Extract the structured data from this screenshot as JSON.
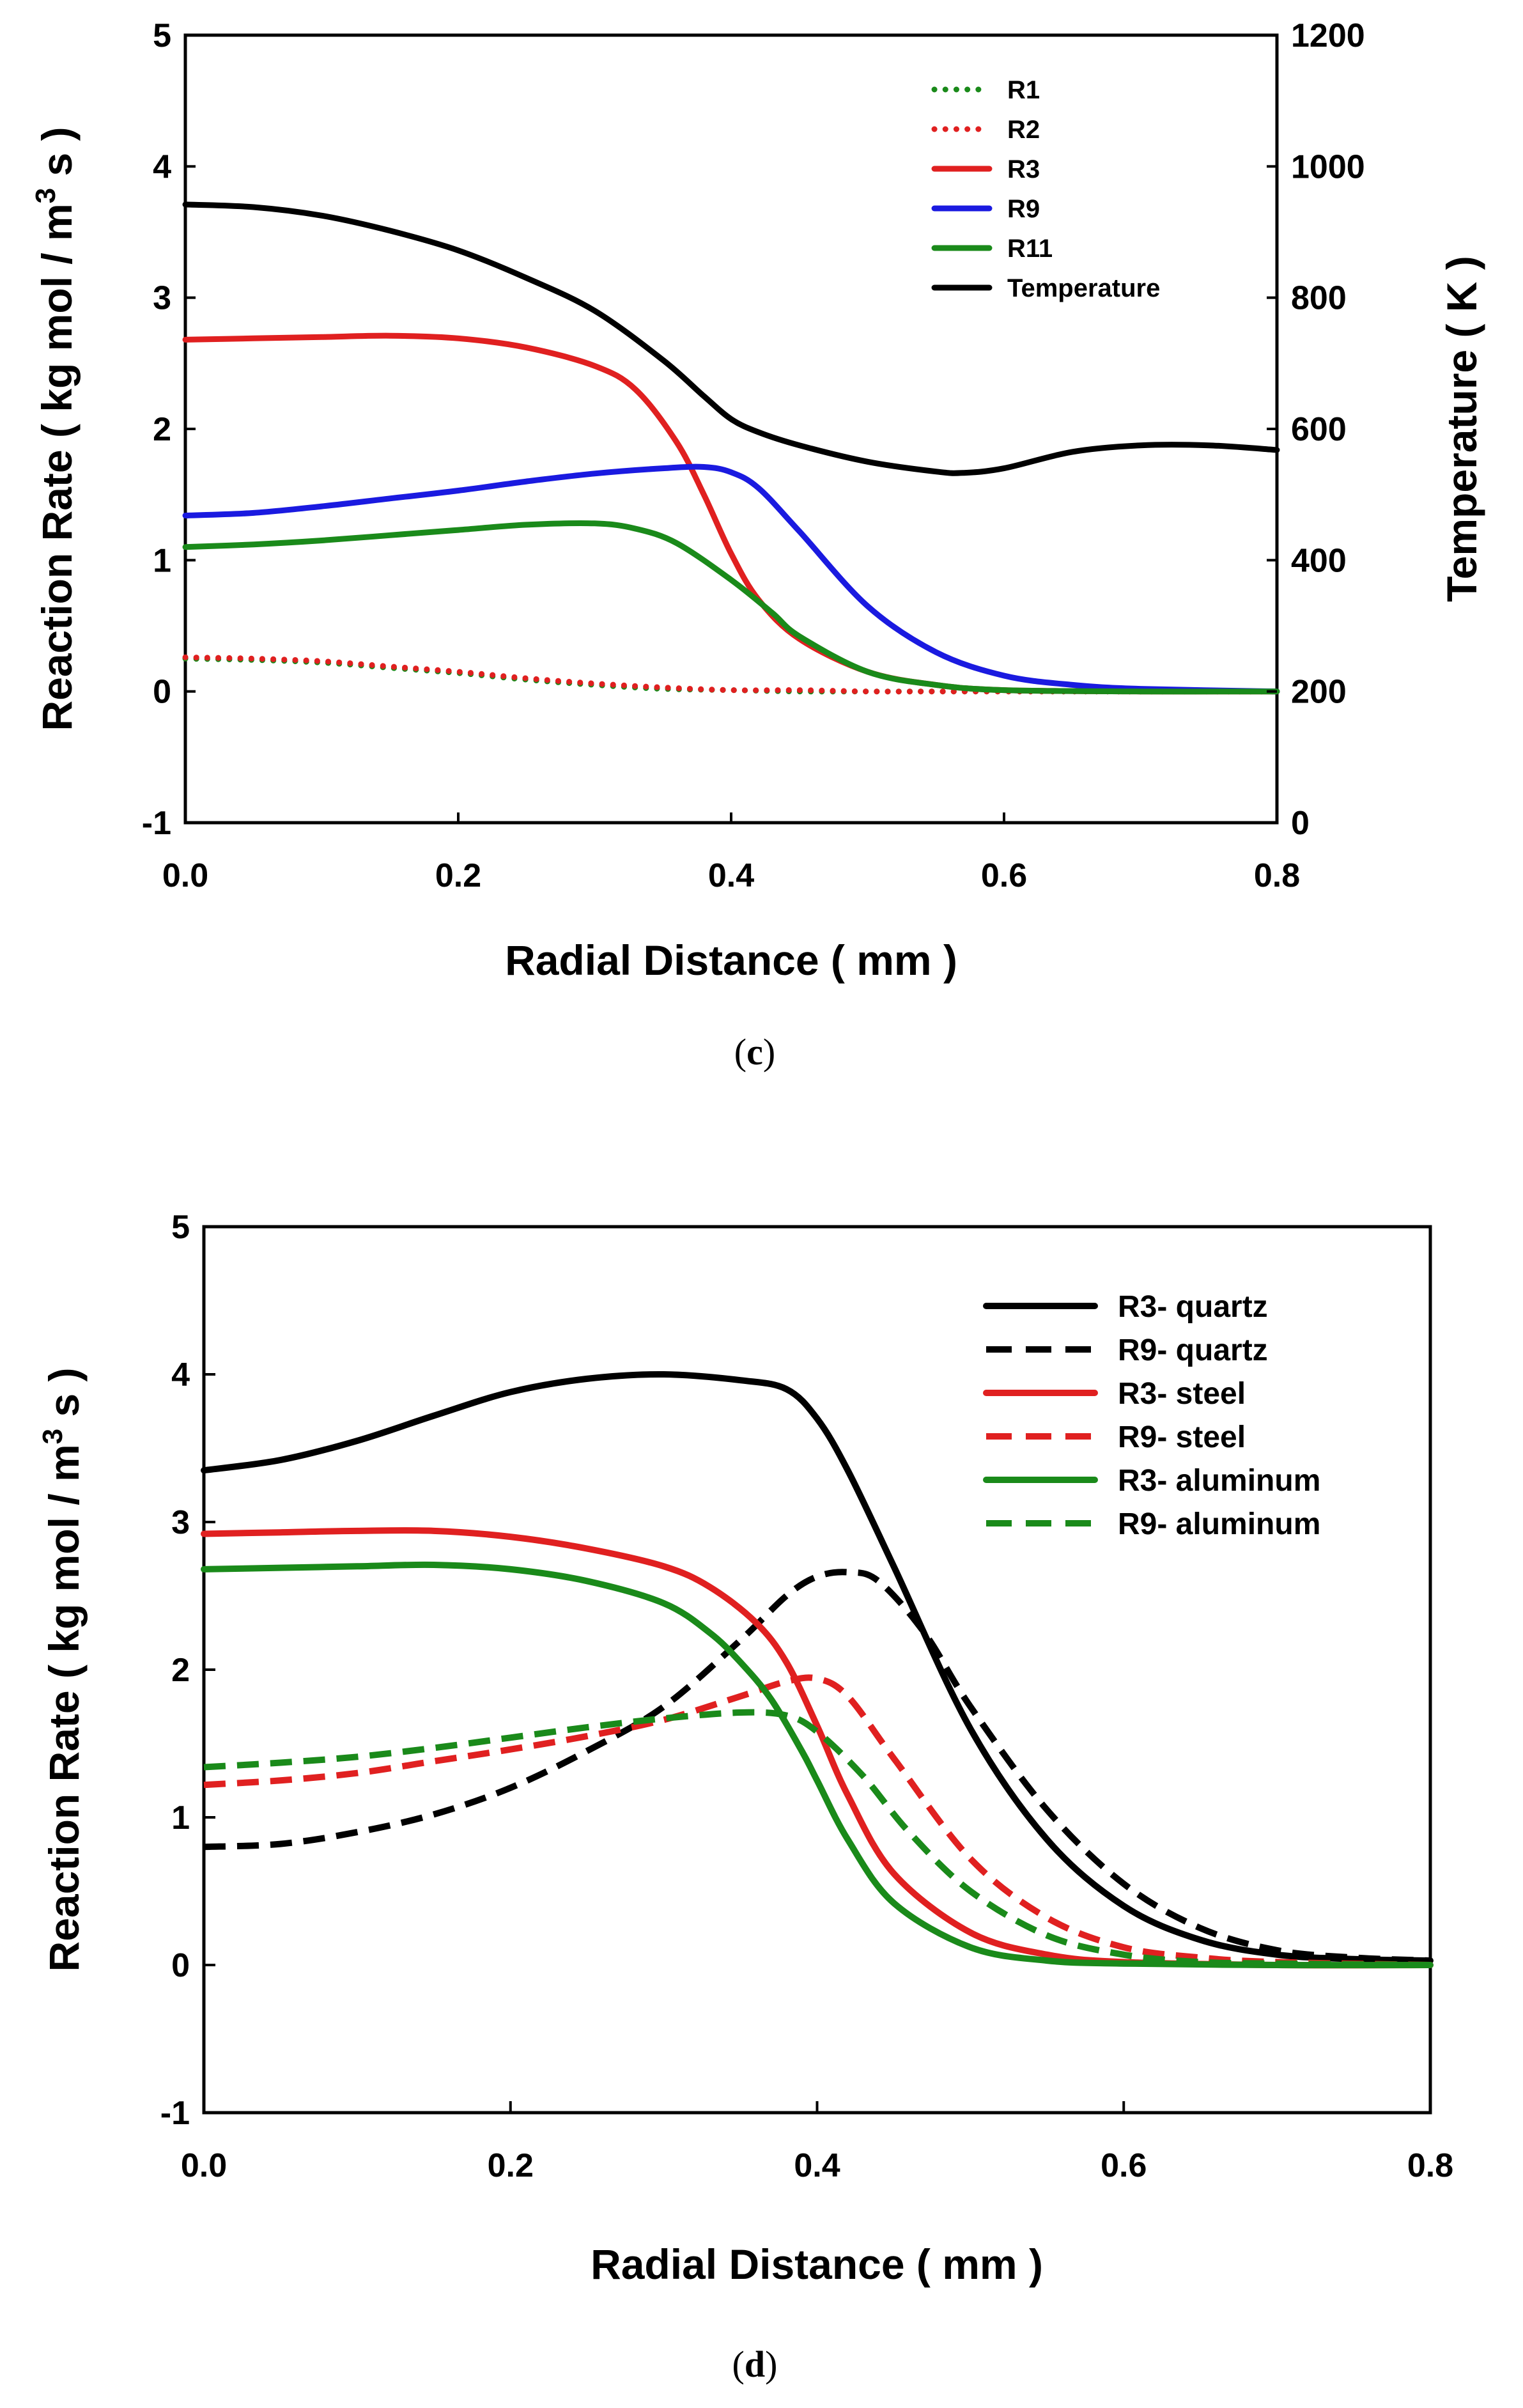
{
  "chart_data": [
    {
      "id": "c",
      "type": "line",
      "caption": "c",
      "xlabel": "Radial Distance ( mm )",
      "ylabel": "Reaction Rate ( kg mol / m³ s )",
      "ylabel_parts": {
        "pre": "Reaction Rate ( kg mol / m",
        "sup": "3",
        "post": " s )"
      },
      "y2label": "Temperature ( K )",
      "xlim": [
        0,
        0.8
      ],
      "ylim": [
        -1,
        5
      ],
      "y2lim": [
        0,
        1200
      ],
      "xticks": [
        "0.0",
        "0.2",
        "0.4",
        "0.6",
        "0.8"
      ],
      "yticks": [
        "-1",
        "0",
        "1",
        "2",
        "3",
        "4",
        "5"
      ],
      "y2ticks": [
        "0",
        "200",
        "400",
        "600",
        "800",
        "1000",
        "1200"
      ],
      "legend_position": "top-right",
      "series": [
        {
          "name": "R1",
          "color": "#1a8a1a",
          "dash": "dotted",
          "axis": "left",
          "x": [
            0,
            0.05,
            0.1,
            0.15,
            0.2,
            0.25,
            0.3,
            0.35,
            0.4,
            0.45,
            0.5,
            0.55,
            0.6,
            0.7,
            0.8
          ],
          "y": [
            0.25,
            0.24,
            0.22,
            0.18,
            0.14,
            0.09,
            0.05,
            0.02,
            0.01,
            0.0,
            0.0,
            0.0,
            0.0,
            0.0,
            0.0
          ]
        },
        {
          "name": "R2",
          "color": "#e02020",
          "dash": "dotted",
          "axis": "left",
          "x": [
            0,
            0.05,
            0.1,
            0.15,
            0.2,
            0.25,
            0.3,
            0.35,
            0.4,
            0.45,
            0.5,
            0.55,
            0.6,
            0.7,
            0.8
          ],
          "y": [
            0.26,
            0.25,
            0.23,
            0.19,
            0.15,
            0.1,
            0.06,
            0.03,
            0.01,
            0.01,
            0.0,
            0.0,
            0.0,
            0.0,
            0.0
          ]
        },
        {
          "name": "R3",
          "color": "#e02020",
          "dash": "solid",
          "axis": "left",
          "x": [
            0,
            0.05,
            0.1,
            0.15,
            0.2,
            0.25,
            0.3,
            0.33,
            0.36,
            0.38,
            0.4,
            0.42,
            0.45,
            0.5,
            0.55,
            0.6,
            0.7,
            0.8
          ],
          "y": [
            2.68,
            2.69,
            2.7,
            2.71,
            2.69,
            2.62,
            2.48,
            2.3,
            1.9,
            1.5,
            1.05,
            0.7,
            0.4,
            0.15,
            0.05,
            0.01,
            0.0,
            0.0
          ]
        },
        {
          "name": "R9",
          "color": "#1a1ae0",
          "dash": "solid",
          "axis": "left",
          "x": [
            0,
            0.05,
            0.1,
            0.15,
            0.2,
            0.25,
            0.3,
            0.35,
            0.38,
            0.4,
            0.42,
            0.45,
            0.5,
            0.55,
            0.6,
            0.65,
            0.7,
            0.8
          ],
          "y": [
            1.34,
            1.36,
            1.41,
            1.47,
            1.53,
            1.6,
            1.66,
            1.7,
            1.71,
            1.67,
            1.55,
            1.22,
            0.65,
            0.3,
            0.12,
            0.05,
            0.02,
            0.0
          ]
        },
        {
          "name": "R11",
          "color": "#1a8a1a",
          "dash": "solid",
          "axis": "left",
          "x": [
            0,
            0.05,
            0.1,
            0.15,
            0.2,
            0.25,
            0.3,
            0.33,
            0.36,
            0.4,
            0.43,
            0.45,
            0.5,
            0.55,
            0.6,
            0.7,
            0.8
          ],
          "y": [
            1.1,
            1.12,
            1.15,
            1.19,
            1.23,
            1.27,
            1.28,
            1.24,
            1.13,
            0.85,
            0.6,
            0.42,
            0.15,
            0.05,
            0.01,
            0.0,
            0.0
          ]
        },
        {
          "name": "Temperature",
          "color": "#000000",
          "dash": "solid",
          "axis": "right",
          "x": [
            0,
            0.05,
            0.1,
            0.15,
            0.2,
            0.25,
            0.3,
            0.35,
            0.38,
            0.4,
            0.42,
            0.45,
            0.5,
            0.55,
            0.57,
            0.6,
            0.65,
            0.7,
            0.75,
            0.8
          ],
          "y": [
            942,
            938,
            925,
            902,
            872,
            830,
            780,
            705,
            650,
            615,
            595,
            575,
            550,
            535,
            533,
            540,
            565,
            575,
            575,
            568
          ]
        }
      ]
    },
    {
      "id": "d",
      "type": "line",
      "caption": "d",
      "xlabel": "Radial Distance ( mm )",
      "ylabel": "Reaction Rate ( kg mol / m³ s )",
      "ylabel_parts": {
        "pre": "Reaction Rate ( kg mol / m",
        "sup": "3",
        "post": " s )"
      },
      "xlim": [
        0,
        0.8
      ],
      "ylim": [
        -1,
        5
      ],
      "xticks": [
        "0.0",
        "0.2",
        "0.4",
        "0.6",
        "0.8"
      ],
      "yticks": [
        "-1",
        "0",
        "1",
        "2",
        "3",
        "4",
        "5"
      ],
      "legend_position": "top-right",
      "series": [
        {
          "name": "R3- quartz",
          "color": "#000000",
          "dash": "solid",
          "x": [
            0,
            0.05,
            0.1,
            0.15,
            0.2,
            0.25,
            0.3,
            0.35,
            0.38,
            0.4,
            0.42,
            0.45,
            0.5,
            0.55,
            0.6,
            0.65,
            0.7,
            0.75,
            0.8
          ],
          "y": [
            3.35,
            3.42,
            3.55,
            3.72,
            3.88,
            3.97,
            4.0,
            3.96,
            3.9,
            3.7,
            3.35,
            2.7,
            1.6,
            0.85,
            0.4,
            0.17,
            0.07,
            0.04,
            0.03
          ]
        },
        {
          "name": "R9- quartz",
          "color": "#000000",
          "dash": "dashed",
          "x": [
            0,
            0.05,
            0.1,
            0.15,
            0.2,
            0.25,
            0.3,
            0.35,
            0.38,
            0.4,
            0.42,
            0.44,
            0.47,
            0.5,
            0.55,
            0.6,
            0.65,
            0.7,
            0.75,
            0.8
          ],
          "y": [
            0.8,
            0.82,
            0.9,
            1.02,
            1.2,
            1.45,
            1.75,
            2.2,
            2.5,
            2.63,
            2.66,
            2.6,
            2.25,
            1.75,
            1.05,
            0.55,
            0.25,
            0.1,
            0.05,
            0.03
          ]
        },
        {
          "name": "R3- steel",
          "color": "#e02020",
          "dash": "solid",
          "x": [
            0,
            0.05,
            0.1,
            0.15,
            0.2,
            0.25,
            0.3,
            0.33,
            0.36,
            0.38,
            0.4,
            0.42,
            0.45,
            0.5,
            0.55,
            0.6,
            0.7,
            0.8
          ],
          "y": [
            2.92,
            2.93,
            2.94,
            2.94,
            2.9,
            2.82,
            2.7,
            2.56,
            2.32,
            2.05,
            1.62,
            1.15,
            0.62,
            0.22,
            0.07,
            0.02,
            0.0,
            0.0
          ]
        },
        {
          "name": "R9- steel",
          "color": "#e02020",
          "dash": "dashed",
          "x": [
            0,
            0.05,
            0.1,
            0.15,
            0.2,
            0.25,
            0.3,
            0.35,
            0.38,
            0.4,
            0.42,
            0.45,
            0.5,
            0.55,
            0.6,
            0.65,
            0.7,
            0.8
          ],
          "y": [
            1.22,
            1.25,
            1.3,
            1.38,
            1.46,
            1.55,
            1.66,
            1.82,
            1.92,
            1.94,
            1.82,
            1.4,
            0.72,
            0.32,
            0.12,
            0.05,
            0.02,
            0.0
          ]
        },
        {
          "name": "R3- aluminum",
          "color": "#1a8a1a",
          "dash": "solid",
          "x": [
            0,
            0.05,
            0.1,
            0.15,
            0.2,
            0.25,
            0.3,
            0.33,
            0.35,
            0.37,
            0.39,
            0.4,
            0.42,
            0.45,
            0.5,
            0.55,
            0.6,
            0.7,
            0.8
          ],
          "y": [
            2.68,
            2.69,
            2.7,
            2.71,
            2.68,
            2.6,
            2.45,
            2.25,
            2.05,
            1.8,
            1.45,
            1.25,
            0.85,
            0.42,
            0.12,
            0.03,
            0.01,
            0.0,
            0.0
          ]
        },
        {
          "name": "R9- aluminum",
          "color": "#1a8a1a",
          "dash": "dashed",
          "x": [
            0,
            0.05,
            0.1,
            0.15,
            0.2,
            0.25,
            0.3,
            0.35,
            0.38,
            0.4,
            0.43,
            0.46,
            0.5,
            0.55,
            0.6,
            0.65,
            0.7,
            0.8
          ],
          "y": [
            1.34,
            1.37,
            1.41,
            1.47,
            1.54,
            1.61,
            1.67,
            1.71,
            1.69,
            1.58,
            1.28,
            0.9,
            0.5,
            0.2,
            0.07,
            0.02,
            0.01,
            0.0
          ]
        }
      ]
    }
  ]
}
